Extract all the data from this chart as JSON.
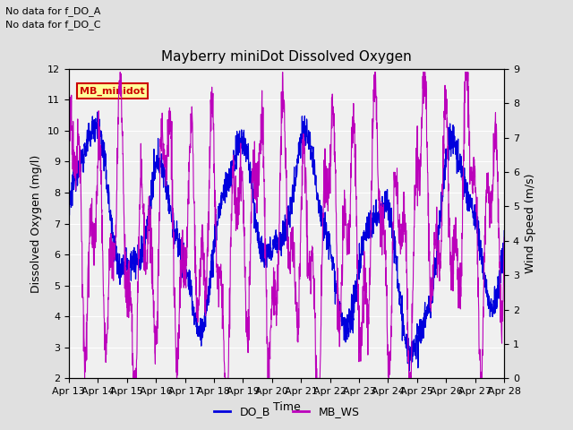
{
  "title": "Mayberry miniDot Dissolved Oxygen",
  "xlabel": "Time",
  "ylabel_left": "Dissolved Oxygen (mg/l)",
  "ylabel_right": "Wind Speed (m/s)",
  "annotation_lines": [
    "No data for f_DO_A",
    "No data for f_DO_C"
  ],
  "legend_box_label": "MB_minidot",
  "legend_box_color": "#cc0000",
  "legend_box_bg": "#ffff99",
  "ylim_left": [
    2.0,
    12.0
  ],
  "ylim_right": [
    0.0,
    9.0
  ],
  "yticks_left": [
    2.0,
    3.0,
    4.0,
    5.0,
    6.0,
    7.0,
    8.0,
    9.0,
    10.0,
    11.0,
    12.0
  ],
  "yticks_right": [
    0.0,
    1.0,
    2.0,
    3.0,
    4.0,
    5.0,
    6.0,
    7.0,
    8.0,
    9.0
  ],
  "xtick_labels": [
    "Apr 13",
    "Apr 14",
    "Apr 15",
    "Apr 16",
    "Apr 17",
    "Apr 18",
    "Apr 19",
    "Apr 20",
    "Apr 21",
    "Apr 22",
    "Apr 23",
    "Apr 24",
    "Apr 25",
    "Apr 26",
    "Apr 27",
    "Apr 28"
  ],
  "color_DO_B": "#0000dd",
  "color_MB_WS": "#bb00bb",
  "bg_color": "#e0e0e0",
  "plot_bg": "#f0f0f0",
  "grid_color": "#ffffff",
  "n_points": 2000
}
